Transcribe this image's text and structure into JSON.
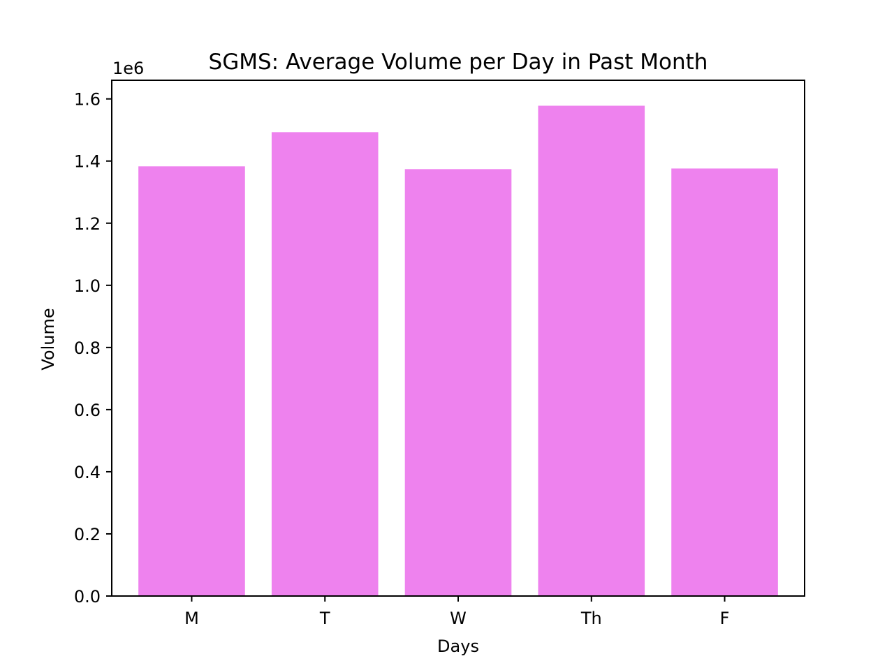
{
  "chart_data": {
    "type": "bar",
    "title": "SGMS: Average Volume per Day in Past Month",
    "xlabel": "Days",
    "ylabel": "Volume",
    "y_offset_label": "1e6",
    "categories": [
      "M",
      "T",
      "W",
      "Th",
      "F"
    ],
    "values": [
      1383000,
      1493000,
      1374000,
      1578000,
      1376000
    ],
    "ylim": [
      0,
      1660000
    ],
    "yticks": [
      0,
      200000,
      400000,
      600000,
      800000,
      1000000,
      1200000,
      1400000,
      1600000
    ],
    "ytick_labels": [
      "0.0",
      "0.2",
      "0.4",
      "0.6",
      "0.8",
      "1.0",
      "1.2",
      "1.4",
      "1.6"
    ],
    "bar_color": "#ee82ee",
    "grid": false,
    "legend": "none"
  }
}
